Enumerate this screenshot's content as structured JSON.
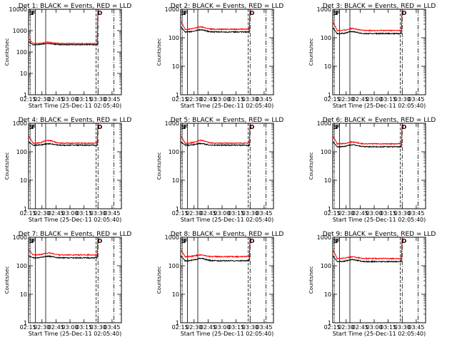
{
  "chart_data": [
    {
      "type": "line",
      "title": "Det 1: BLACK = Events, RED = LLD",
      "xlabel": "Start Time (25-Dec-11 02:05:40)",
      "ylabel": "Counts/sec",
      "ymax_label": "10000",
      "ymax": 10000,
      "ymin": 1,
      "xticks": [
        "02:15",
        "02:30",
        "02:45",
        "03:00",
        "03:15",
        "03:30",
        "03:45"
      ],
      "yticks": [
        "10",
        "100",
        "1000",
        "10000"
      ],
      "markers": [
        "S",
        "F",
        "D"
      ],
      "series": [
        {
          "name": "Events",
          "color": "#000000",
          "start": 300,
          "level": 220,
          "bump": 250
        },
        {
          "name": "LLD",
          "color": "#ff0000",
          "start": 430,
          "level": 250,
          "bump": 290
        }
      ]
    },
    {
      "type": "line",
      "title": "Det 2: BLACK = Events, RED = LLD",
      "xlabel": "Start Time (25-Dec-11 02:05:40)",
      "ylabel": "Counts/sec",
      "ymax_label": "1000",
      "ymax": 1000,
      "ymin": 1,
      "xticks": [
        "02:15",
        "02:30",
        "02:45",
        "03:00",
        "03:15",
        "03:30",
        "03:45"
      ],
      "yticks": [
        "10",
        "100",
        "1000"
      ],
      "markers": [
        "S",
        "F",
        "D"
      ],
      "series": [
        {
          "name": "Events",
          "color": "#000000",
          "start": 250,
          "level": 160,
          "bump": 190
        },
        {
          "name": "LLD",
          "color": "#ff0000",
          "start": 400,
          "level": 200,
          "bump": 240
        }
      ]
    },
    {
      "type": "line",
      "title": "Det 3: BLACK = Events, RED = LLD",
      "xlabel": "Start Time (25-Dec-11 02:05:40)",
      "ylabel": "Counts/sec",
      "ymax_label": "1000",
      "ymax": 1000,
      "ymin": 1,
      "xticks": [
        "02:15",
        "02:30",
        "02:45",
        "03:00",
        "03:15",
        "03:30",
        "03:45"
      ],
      "yticks": [
        "10",
        "100",
        "1000"
      ],
      "markers": [
        "S",
        "F",
        "D"
      ],
      "series": [
        {
          "name": "Events",
          "color": "#000000",
          "start": 230,
          "level": 140,
          "bump": 165
        },
        {
          "name": "LLD",
          "color": "#ff0000",
          "start": 380,
          "level": 180,
          "bump": 210
        }
      ]
    },
    {
      "type": "line",
      "title": "Det 4: BLACK = Events, RED = LLD",
      "xlabel": "Start Time (25-Dec-11 02:05:40)",
      "ylabel": "Counts/sec",
      "ymax_label": "1000",
      "ymax": 1000,
      "ymin": 1,
      "xticks": [
        "02:15",
        "02:30",
        "02:45",
        "03:00",
        "03:15",
        "03:30",
        "03:45"
      ],
      "yticks": [
        "10",
        "100",
        "1000"
      ],
      "markers": [
        "S",
        "F",
        "D"
      ],
      "series": [
        {
          "name": "Events",
          "color": "#000000",
          "start": 230,
          "level": 170,
          "bump": 190
        },
        {
          "name": "LLD",
          "color": "#ff0000",
          "start": 380,
          "level": 200,
          "bump": 250
        }
      ]
    },
    {
      "type": "line",
      "title": "Det 5: BLACK = Events, RED = LLD",
      "xlabel": "Start Time (25-Dec-11 02:05:40)",
      "ylabel": "Counts/sec",
      "ymax_label": "1000",
      "ymax": 1000,
      "ymin": 1,
      "xticks": [
        "02:15",
        "02:30",
        "02:45",
        "03:00",
        "03:15",
        "03:30",
        "03:45"
      ],
      "yticks": [
        "10",
        "100",
        "1000"
      ],
      "markers": [
        "S",
        "F",
        "D"
      ],
      "series": [
        {
          "name": "Events",
          "color": "#000000",
          "start": 230,
          "level": 170,
          "bump": 195
        },
        {
          "name": "LLD",
          "color": "#ff0000",
          "start": 380,
          "level": 200,
          "bump": 250
        }
      ]
    },
    {
      "type": "line",
      "title": "Det 6: BLACK = Events, RED = LLD",
      "xlabel": "Start Time (25-Dec-11 02:05:40)",
      "ylabel": "Counts/sec",
      "ymax_label": "1000",
      "ymax": 1000,
      "ymin": 1,
      "xticks": [
        "02:15",
        "02:30",
        "02:45",
        "03:00",
        "03:15",
        "03:30",
        "03:45"
      ],
      "yticks": [
        "10",
        "100",
        "1000"
      ],
      "markers": [
        "S",
        "F",
        "D"
      ],
      "series": [
        {
          "name": "Events",
          "color": "#000000",
          "start": 230,
          "level": 150,
          "bump": 175
        },
        {
          "name": "LLD",
          "color": "#ff0000",
          "start": 380,
          "level": 190,
          "bump": 220
        }
      ]
    },
    {
      "type": "line",
      "title": "Det 7: BLACK = Events, RED = LLD",
      "xlabel": "Start Time (25-Dec-11 02:05:40)",
      "ylabel": "Counts/sec",
      "ymax_label": "1000",
      "ymax": 1000,
      "ymin": 1,
      "xticks": [
        "02:15",
        "02:30",
        "02:45",
        "03:00",
        "03:15",
        "03:30",
        "03:45"
      ],
      "yticks": [
        "10",
        "100",
        "1000"
      ],
      "markers": [
        "S",
        "F",
        "D"
      ],
      "series": [
        {
          "name": "Events",
          "color": "#000000",
          "start": 230,
          "level": 190,
          "bump": 215
        },
        {
          "name": "LLD",
          "color": "#ff0000",
          "start": 380,
          "level": 240,
          "bump": 280
        }
      ]
    },
    {
      "type": "line",
      "title": "Det 8: BLACK = Events, RED = LLD",
      "xlabel": "Start Time (25-Dec-11 02:05:40)",
      "ylabel": "Counts/sec",
      "ymax_label": "1000",
      "ymax": 1000,
      "ymin": 1,
      "xticks": [
        "02:15",
        "02:30",
        "02:45",
        "03:00",
        "03:15",
        "03:30",
        "03:45"
      ],
      "yticks": [
        "10",
        "100",
        "1000"
      ],
      "markers": [
        "S",
        "F",
        "D"
      ],
      "series": [
        {
          "name": "Events",
          "color": "#000000",
          "start": 230,
          "level": 150,
          "bump": 180
        },
        {
          "name": "LLD",
          "color": "#ff0000",
          "start": 380,
          "level": 210,
          "bump": 240
        }
      ]
    },
    {
      "type": "line",
      "title": "Det 9: BLACK = Events, RED = LLD",
      "xlabel": "Start Time (25-Dec-11 02:05:40)",
      "ylabel": "Counts/sec",
      "ymax_label": "1000",
      "ymax": 1000,
      "ymin": 1,
      "xticks": [
        "02:15",
        "02:30",
        "02:45",
        "03:00",
        "03:15",
        "03:30",
        "03:45"
      ],
      "yticks": [
        "10",
        "100",
        "1000"
      ],
      "markers": [
        "S",
        "F",
        "D"
      ],
      "series": [
        {
          "name": "Events",
          "color": "#000000",
          "start": 230,
          "level": 140,
          "bump": 165
        },
        {
          "name": "LLD",
          "color": "#ff0000",
          "start": 380,
          "level": 180,
          "bump": 205
        }
      ]
    }
  ]
}
